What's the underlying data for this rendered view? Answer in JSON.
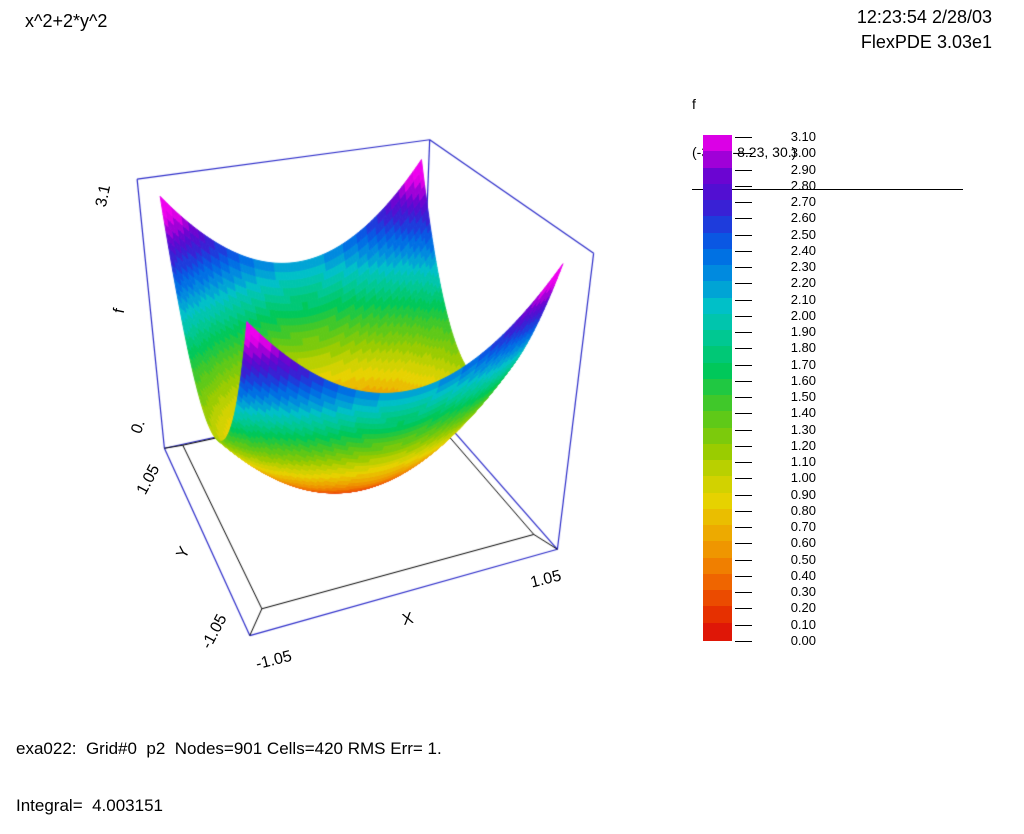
{
  "header": {
    "title": "x^2+2*y^2",
    "timestamp": "12:23:54 2/28/03",
    "version": "FlexPDE 3.03e1"
  },
  "legend": {
    "variable": "f",
    "viewpoint": "(-3.41,-8.23, 30.)",
    "labels": [
      "3.10",
      "3.00",
      "2.90",
      "2.80",
      "2.70",
      "2.60",
      "2.50",
      "2.40",
      "2.30",
      "2.20",
      "2.10",
      "2.00",
      "1.90",
      "1.80",
      "1.70",
      "1.60",
      "1.50",
      "1.40",
      "1.30",
      "1.20",
      "1.10",
      "1.00",
      "0.90",
      "0.80",
      "0.70",
      "0.60",
      "0.50",
      "0.40",
      "0.30",
      "0.20",
      "0.10",
      "0.00"
    ]
  },
  "axes": {
    "f": {
      "title": "f",
      "max": "3.1",
      "min": "0."
    },
    "y": {
      "title": "Y",
      "max": "1.05",
      "min": "-1.05"
    },
    "x": {
      "title": "X",
      "min": "-1.05",
      "max": "1.05"
    }
  },
  "status": {
    "line1": "exa022:  Grid#0  p2  Nodes=901 Cells=420 RMS Err= 1.",
    "line2": "Integral=  4.003151"
  },
  "chart_data": {
    "type": "surface",
    "title": "x^2+2*y^2",
    "function": "f = x^2 + 2*y^2",
    "coefficients": {
      "x2": 1,
      "y2": 2
    },
    "x_range": [
      -1.05,
      1.05
    ],
    "y_range": [
      -1.05,
      1.05
    ],
    "f_range": [
      0,
      3.31
    ],
    "xlabel": "X",
    "ylabel": "Y",
    "zlabel": "f",
    "contour_step": 0.1,
    "levels_min": 0.0,
    "levels_max": 3.1,
    "frame_color": "#2828c8",
    "base_outline_color": "#000000",
    "colormap": [
      [
        0.0,
        "#DC0A0A"
      ],
      [
        0.15,
        "#E63000"
      ],
      [
        0.3,
        "#EE5800"
      ],
      [
        0.5,
        "#F08C00"
      ],
      [
        0.7,
        "#ECB400"
      ],
      [
        0.85,
        "#E6D200"
      ],
      [
        1.0,
        "#C8D200"
      ],
      [
        1.15,
        "#9ACC00"
      ],
      [
        1.4,
        "#50C81E"
      ],
      [
        1.65,
        "#00C85A"
      ],
      [
        1.9,
        "#00C8A0"
      ],
      [
        2.05,
        "#00C0C8"
      ],
      [
        2.2,
        "#0096DC"
      ],
      [
        2.4,
        "#0064E6"
      ],
      [
        2.55,
        "#1E3CDC"
      ],
      [
        2.7,
        "#4614D2"
      ],
      [
        2.9,
        "#7800D2"
      ],
      [
        3.0,
        "#C800DE"
      ],
      [
        3.1,
        "#EE00EE"
      ],
      [
        3.2,
        "#EE00EE"
      ]
    ]
  }
}
